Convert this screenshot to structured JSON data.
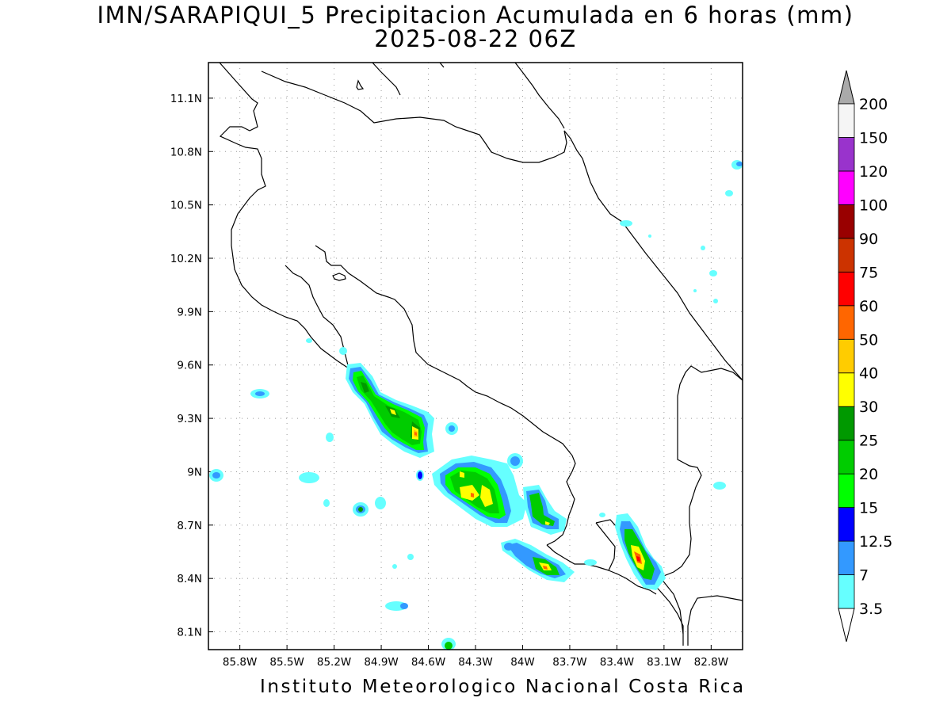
{
  "title": {
    "line1": "IMN/SARAPIQUI_5 Precipitacion Acumulada en 6 horas (mm)",
    "line2": "2025-08-22 06Z"
  },
  "footer": "Instituto Meteorologico Nacional Costa Rica",
  "map": {
    "lon_range": [
      -86.0,
      -82.6
    ],
    "lat_range": [
      8.0,
      11.3
    ],
    "lon_ticks": [
      "85.8W",
      "85.5W",
      "85.2W",
      "84.9W",
      "84.6W",
      "84.3W",
      "84W",
      "83.7W",
      "83.4W",
      "83.1W",
      "82.8W"
    ],
    "lat_ticks": [
      "11.1N",
      "10.8N",
      "10.5N",
      "10.2N",
      "9.9N",
      "9.6N",
      "9.3N",
      "9N",
      "8.7N",
      "8.4N",
      "8.1N"
    ],
    "grid": true
  },
  "colorbar": {
    "levels": [
      "3.5",
      "7",
      "12.5",
      "15",
      "20",
      "25",
      "30",
      "40",
      "50",
      "60",
      "75",
      "90",
      "100",
      "120",
      "150",
      "200"
    ],
    "colors": [
      "#66ffff",
      "#3399ff",
      "#0000ff",
      "#00ff00",
      "#00cc00",
      "#009900",
      "#ffff00",
      "#ffcc00",
      "#ff6600",
      "#ff0000",
      "#cc3300",
      "#990000",
      "#ff00ff",
      "#9933cc",
      "#f5f5f5",
      "#aaaaaa"
    ],
    "below_color": "#ffffff",
    "above_color": "#aaaaaa"
  }
}
